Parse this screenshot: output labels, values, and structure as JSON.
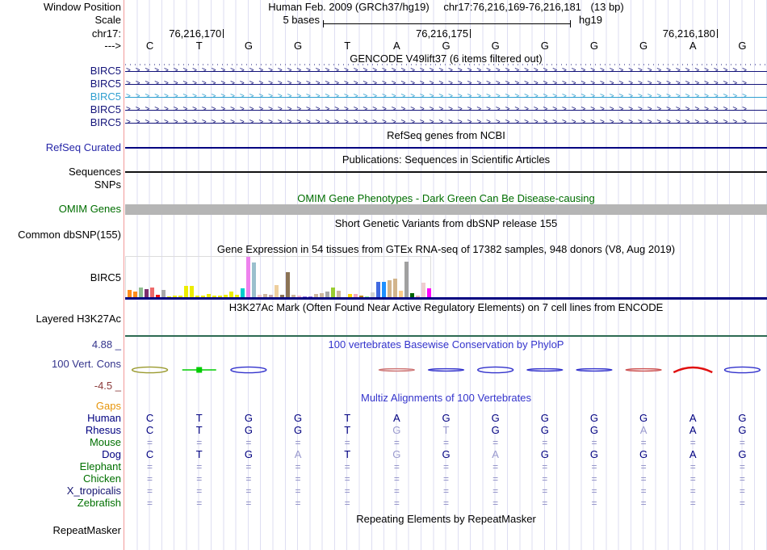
{
  "header": {
    "window_position_label": "Window Position",
    "assembly_title": "Human Feb. 2009 (GRCh37/hg19)",
    "position": "chr17:76,216,169-76,216,181",
    "size": "(13 bp)",
    "scale_label": "Scale",
    "scale_value": "5 bases",
    "assembly_short": "hg19",
    "chrom_label": "chr17:",
    "direction_label": "--->",
    "coordinates": [
      {
        "text": "76,216,170",
        "tick_col": 2
      },
      {
        "text": "76,216,175",
        "tick_col": 7
      },
      {
        "text": "76,216,180",
        "tick_col": 12
      }
    ],
    "bases": [
      "C",
      "T",
      "G",
      "G",
      "T",
      "A",
      "G",
      "G",
      "G",
      "G",
      "G",
      "A",
      "G"
    ]
  },
  "tracks": {
    "gencode": {
      "title": "GENCODE V49lift37 (6 items filtered out)",
      "arrow_char": ">",
      "arrow_count": 66,
      "transcripts": [
        {
          "label": "BIRC5",
          "color": "#14147a"
        },
        {
          "label": "BIRC5",
          "color": "#14147a"
        },
        {
          "label": "BIRC5",
          "color": "#2f9fd0"
        },
        {
          "label": "BIRC5",
          "color": "#14147a"
        },
        {
          "label": "BIRC5",
          "color": "#14147a"
        }
      ]
    },
    "refseq": {
      "title": "RefSeq genes from NCBI",
      "label": "RefSeq Curated",
      "label_color": "#2626a8",
      "line_color": "#000080"
    },
    "publications": {
      "title": "Publications: Sequences in Scientific Articles",
      "label": "Sequences",
      "line_color": "#111111"
    },
    "snps": {
      "label": "SNPs"
    },
    "omim": {
      "title": "OMIM Gene Phenotypes - Dark Green Can Be Disease-causing",
      "label": "OMIM Genes",
      "color": "#006e00",
      "bar_color": "#b5b5b5"
    },
    "dbsnp": {
      "title": "Short Genetic Variants from dbSNP release 155",
      "label": "Common dbSNP(155)"
    },
    "gtex": {
      "title": "Gene Expression in 54 tissues from GTEx RNA-seq of 17382 samples, 948 donors (V8, Aug 2019)",
      "label": "BIRC5",
      "baseline_color": "#000080"
    },
    "h3k27ac": {
      "title": "H3K27Ac Mark (Often Found Near Active Regulatory Elements) on 7 cell lines from ENCODE",
      "label": "Layered H3K27Ac",
      "line_color": "#2d6a52"
    },
    "conservation": {
      "title": "100 vertebrates Basewise Conservation by PhyloP",
      "label": "100 Vert. Cons",
      "max_label": "4.88 _",
      "min_label": "-4.5 _",
      "title_color": "#3434cc",
      "label_color": "#34348c",
      "min_color": "#8b3a3a",
      "shapes": [
        {
          "col": 1,
          "type": "lens",
          "color": "#9a9a2e"
        },
        {
          "col": 2,
          "type": "line-square",
          "color": "#00cc00"
        },
        {
          "col": 3,
          "type": "lens",
          "color": "#3232cc"
        },
        {
          "col": 6,
          "type": "flat",
          "color": "#cc7070"
        },
        {
          "col": 7,
          "type": "flat",
          "color": "#3232cc"
        },
        {
          "col": 8,
          "type": "lens",
          "color": "#3232cc"
        },
        {
          "col": 9,
          "type": "flat",
          "color": "#3232cc"
        },
        {
          "col": 10,
          "type": "flat",
          "color": "#3232cc"
        },
        {
          "col": 11,
          "type": "flat",
          "color": "#cc5050"
        },
        {
          "col": 12,
          "type": "peak",
          "color": "#e01010"
        },
        {
          "col": 13,
          "type": "lens",
          "color": "#3232cc"
        }
      ]
    },
    "multiz": {
      "title": "Multiz Alignments of 100 Vertebrates",
      "title_color": "#3434cc",
      "match_color": "#000080",
      "mismatch_color": "#9a9ace",
      "equals_color": "#8a8ac4",
      "rows": [
        {
          "label": "Gaps",
          "label_color": "#e6940a",
          "cells": []
        },
        {
          "label": "Human",
          "label_color": "#000080",
          "cells": [
            [
              "C",
              "m"
            ],
            [
              "T",
              "m"
            ],
            [
              "G",
              "m"
            ],
            [
              "G",
              "m"
            ],
            [
              "T",
              "m"
            ],
            [
              "A",
              "m"
            ],
            [
              "G",
              "m"
            ],
            [
              "G",
              "m"
            ],
            [
              "G",
              "m"
            ],
            [
              "G",
              "m"
            ],
            [
              "G",
              "m"
            ],
            [
              "A",
              "m"
            ],
            [
              "G",
              "m"
            ]
          ]
        },
        {
          "label": "Rhesus",
          "label_color": "#000080",
          "cells": [
            [
              "C",
              "m"
            ],
            [
              "T",
              "m"
            ],
            [
              "G",
              "m"
            ],
            [
              "G",
              "m"
            ],
            [
              "T",
              "m"
            ],
            [
              "G",
              "x"
            ],
            [
              "T",
              "x"
            ],
            [
              "G",
              "m"
            ],
            [
              "G",
              "m"
            ],
            [
              "G",
              "m"
            ],
            [
              "A",
              "x"
            ],
            [
              "A",
              "m"
            ],
            [
              "G",
              "m"
            ]
          ]
        },
        {
          "label": "Mouse",
          "label_color": "#007000",
          "cells": "="
        },
        {
          "label": "Dog",
          "label_color": "#000080",
          "cells": [
            [
              "C",
              "m"
            ],
            [
              "T",
              "m"
            ],
            [
              "G",
              "m"
            ],
            [
              "A",
              "x"
            ],
            [
              "T",
              "m"
            ],
            [
              "G",
              "x"
            ],
            [
              "G",
              "m"
            ],
            [
              "A",
              "x"
            ],
            [
              "G",
              "m"
            ],
            [
              "G",
              "m"
            ],
            [
              "G",
              "m"
            ],
            [
              "A",
              "m"
            ],
            [
              "G",
              "m"
            ]
          ]
        },
        {
          "label": "Elephant",
          "label_color": "#007000",
          "cells": "="
        },
        {
          "label": "Chicken",
          "label_color": "#007000",
          "cells": "="
        },
        {
          "label": "X_tropicalis",
          "label_color": "#151570",
          "cells": "="
        },
        {
          "label": "Zebrafish",
          "label_color": "#007000",
          "cells": "="
        }
      ]
    },
    "repeatmasker": {
      "title": "Repeating Elements by RepeatMasker",
      "label": "RepeatMasker"
    }
  },
  "chart_data": {
    "type": "bar",
    "title": "Gene Expression in 54 tissues from GTEx RNA-seq of 17382 samples, 948 donors (V8, Aug 2019)",
    "gene": "BIRC5",
    "note": "54 unlabeled tissue bars; values are relative expression heights (px, max 51)",
    "bars": [
      [
        "#ff8c1a",
        10
      ],
      [
        "#ff8c1a",
        8
      ],
      [
        "#8fbc8f",
        13
      ],
      [
        "#7d2f6e",
        11
      ],
      [
        "#ee6a6a",
        13
      ],
      [
        "#ee1111",
        4
      ],
      [
        "#aaaaaa",
        10
      ],
      [
        "#eded00",
        2
      ],
      [
        "#eded00",
        3
      ],
      [
        "#eded00",
        3
      ],
      [
        "#eded00",
        15
      ],
      [
        "#eded00",
        15
      ],
      [
        "#eded00",
        3
      ],
      [
        "#eded00",
        3
      ],
      [
        "#eded00",
        5
      ],
      [
        "#eded00",
        3
      ],
      [
        "#eded00",
        3
      ],
      [
        "#eded00",
        4
      ],
      [
        "#eded00",
        8
      ],
      [
        "#eded00",
        4
      ],
      [
        "#00cdcd",
        12
      ],
      [
        "#ee82ee",
        51
      ],
      [
        "#9ac0cd",
        44
      ],
      [
        "#f4c8c8",
        4
      ],
      [
        "#cdb79e",
        5
      ],
      [
        "#c9a9a9",
        4
      ],
      [
        "#eecf9e",
        16
      ],
      [
        "#8b7355",
        4
      ],
      [
        "#8b7355",
        32
      ],
      [
        "#cdb79e",
        4
      ],
      [
        "#f4b8d0",
        3
      ],
      [
        "#9370db",
        2
      ],
      [
        "#9370db",
        2
      ],
      [
        "#cdb79e",
        5
      ],
      [
        "#cdb79e",
        6
      ],
      [
        "#a8a8a8",
        8
      ],
      [
        "#9acd32",
        13
      ],
      [
        "#cdb79e",
        9
      ],
      [
        "#cccccc",
        1
      ],
      [
        "#ffd700",
        5
      ],
      [
        "#f4a8c0",
        5
      ],
      [
        "#b8860b",
        3
      ],
      [
        "#90ee90",
        2
      ],
      [
        "#d3d3d3",
        7
      ],
      [
        "#4169e1",
        20
      ],
      [
        "#1e90ff",
        20
      ],
      [
        "#d2b48c",
        22
      ],
      [
        "#d2b48c",
        24
      ],
      [
        "#ffcc88",
        9
      ],
      [
        "#a0a0a0",
        45
      ],
      [
        "#006400",
        6
      ],
      [
        "#eeb4b4",
        3
      ],
      [
        "#eecfcf",
        19
      ],
      [
        "#ff00ff",
        12
      ]
    ]
  }
}
